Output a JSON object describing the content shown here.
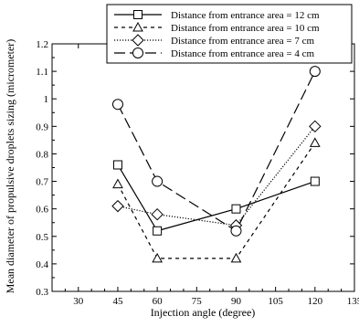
{
  "chart_data": {
    "type": "line",
    "xlabel": "Injection angle (degree)",
    "ylabel": "Mean diameter of propulsive droplets sizing (micrometer)",
    "xlim": [
      20,
      135
    ],
    "ylim": [
      0.3,
      1.2
    ],
    "xticks": [
      30,
      45,
      60,
      75,
      90,
      105,
      120,
      135
    ],
    "yticks": [
      0.3,
      0.4,
      0.5,
      0.6,
      0.7,
      0.8,
      0.9,
      1,
      1.1,
      1.2
    ],
    "x": [
      45,
      60,
      90,
      120
    ],
    "legend_position": "top",
    "grid": false,
    "series": [
      {
        "name": "Distance from entrance area = 12 cm",
        "marker": "square",
        "dash": "solid",
        "values": [
          0.76,
          0.52,
          0.6,
          0.7
        ]
      },
      {
        "name": "Distance from entrance area = 10 cm",
        "marker": "triangle",
        "dash": "dashed",
        "values": [
          0.69,
          0.42,
          0.42,
          0.84
        ]
      },
      {
        "name": "Distance from entrance area = 7 cm",
        "marker": "diamond",
        "dash": "dotted",
        "values": [
          0.61,
          0.58,
          0.54,
          0.9
        ]
      },
      {
        "name": "Distance from entrance area = 4 cm",
        "marker": "circle",
        "dash": "longdash",
        "values": [
          0.98,
          0.7,
          0.52,
          1.1
        ]
      }
    ]
  }
}
